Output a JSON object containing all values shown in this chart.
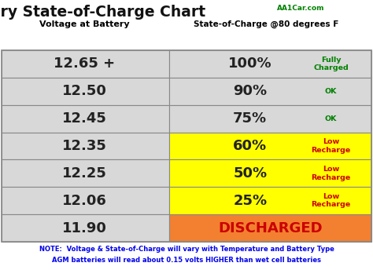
{
  "title_main": "Battery State-of-Charge Chart",
  "title_sub": "AA1Car.com",
  "col1_header": "Voltage at Battery",
  "col2_header": "State-of-Charge @80 degrees F",
  "rows": [
    {
      "voltage": "12.65 +",
      "soc": "100%",
      "label": "Fully\nCharged",
      "label_color": "#008000",
      "left_bg": "#d8d8d8",
      "right_bg": "#d8d8d8"
    },
    {
      "voltage": "12.50",
      "soc": "90%",
      "label": "OK",
      "label_color": "#008000",
      "left_bg": "#d8d8d8",
      "right_bg": "#d8d8d8"
    },
    {
      "voltage": "12.45",
      "soc": "75%",
      "label": "OK",
      "label_color": "#008000",
      "left_bg": "#d8d8d8",
      "right_bg": "#d8d8d8"
    },
    {
      "voltage": "12.35",
      "soc": "60%",
      "label": "Low\nRecharge",
      "label_color": "#cc0000",
      "left_bg": "#d8d8d8",
      "right_bg": "#ffff00"
    },
    {
      "voltage": "12.25",
      "soc": "50%",
      "label": "Low\nRecharge",
      "label_color": "#cc0000",
      "left_bg": "#d8d8d8",
      "right_bg": "#ffff00"
    },
    {
      "voltage": "12.06",
      "soc": "25%",
      "label": "Low\nRecharge",
      "label_color": "#cc0000",
      "left_bg": "#d8d8d8",
      "right_bg": "#ffff00"
    },
    {
      "voltage": "11.90",
      "soc": "DISCHARGED",
      "label": "",
      "label_color": "#cc0000",
      "left_bg": "#d8d8d8",
      "right_bg": "#f28030"
    }
  ],
  "note_line1": "NOTE:  Voltage & State-of-Charge will vary with Temperature and Battery Type",
  "note_line2": "AGM batteries will read about 0.15 volts HIGHER than wet cell batteries",
  "note_color": "#0000ee",
  "bg_color": "#ffffff",
  "border_color": "#888888",
  "header_text_color": "#000000",
  "voltage_text_color": "#222222",
  "soc_text_color": "#222222",
  "title_color": "#111111",
  "subtitle_color": "#008000"
}
